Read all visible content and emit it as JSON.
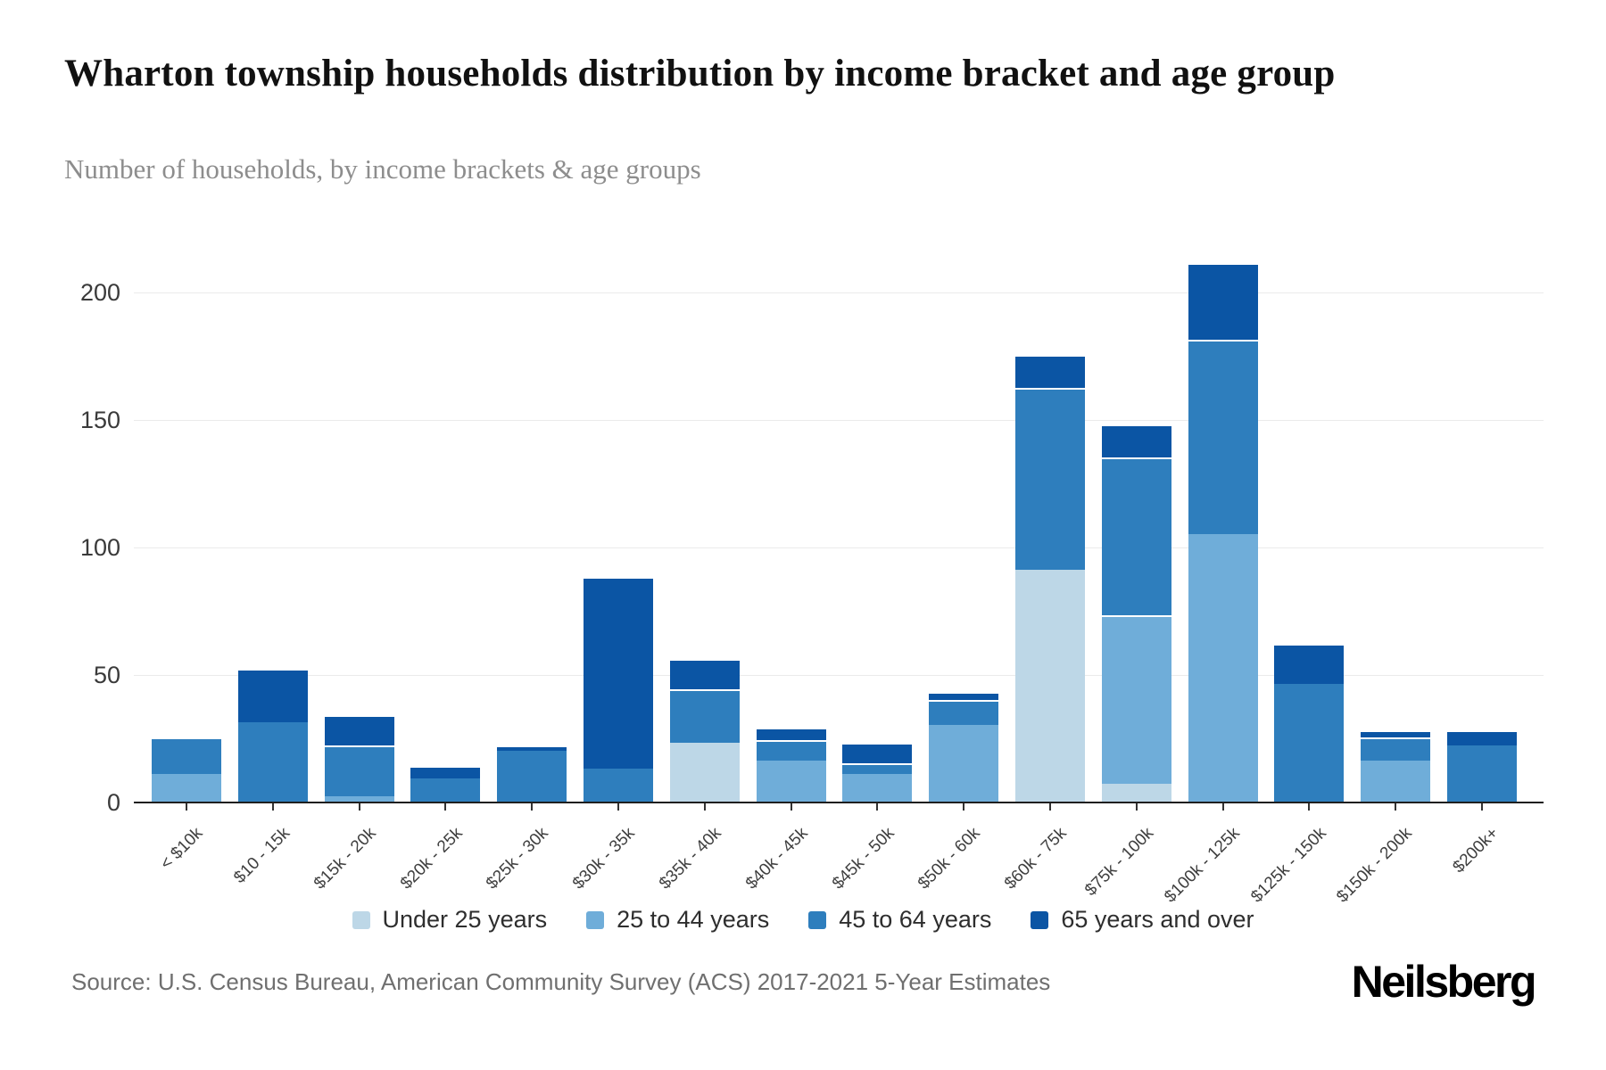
{
  "header": {
    "title": "Wharton township households distribution by income bracket and age group",
    "subtitle": "Number of households, by income brackets & age groups"
  },
  "footer": {
    "source": "Source: U.S. Census Bureau, American Community Survey (ACS) 2017-2021 5-Year Estimates",
    "brand": "Neilsberg"
  },
  "chart_data": {
    "type": "bar",
    "stacked": true,
    "title": "Wharton township households distribution by income bracket and age group",
    "subtitle": "Number of households, by income brackets & age groups",
    "categories": [
      "< $10k",
      "$10 - 15k",
      "$15k - 20k",
      "$20k - 25k",
      "$25k - 30k",
      "$30k - 35k",
      "$35k - 40k",
      "$40k - 45k",
      "$45k - 50k",
      "$50k - 60k",
      "$60k - 75k",
      "$75k - 100k",
      "$100k - 125k",
      "$125k - 150k",
      "$150k - 200k",
      "$200k+"
    ],
    "series": [
      {
        "name": "Under 25 years",
        "color": "#bdd7e7",
        "values": [
          0,
          0,
          0,
          0,
          0,
          0,
          23,
          0,
          0,
          0,
          91,
          7,
          0,
          0,
          0,
          0
        ]
      },
      {
        "name": "25 to 44 years",
        "color": "#6fadd9",
        "values": [
          11,
          0,
          2,
          0,
          0,
          0,
          0,
          16,
          11,
          30,
          0,
          66,
          105,
          0,
          16,
          0
        ]
      },
      {
        "name": "45 to 64 years",
        "color": "#2e7ebd",
        "values": [
          14,
          31,
          20,
          9,
          20,
          13,
          21,
          8,
          4,
          10,
          71,
          62,
          76,
          46,
          9,
          22
        ]
      },
      {
        "name": "65 years and over",
        "color": "#0b55a4",
        "values": [
          0,
          21,
          12,
          5,
          2,
          75,
          12,
          5,
          8,
          3,
          13,
          13,
          30,
          16,
          3,
          6
        ]
      }
    ],
    "totals": [
      25,
      52,
      34,
      14,
      22,
      88,
      56,
      29,
      23,
      43,
      175,
      148,
      211,
      62,
      28,
      28
    ],
    "xlabel": "",
    "ylabel": "",
    "yticks": [
      0,
      50,
      100,
      150,
      200
    ],
    "ylim": [
      0,
      231
    ],
    "grid": true,
    "legend_position": "bottom",
    "axis_color": "#1f1f1f",
    "grid_color": "#ebebeb"
  }
}
